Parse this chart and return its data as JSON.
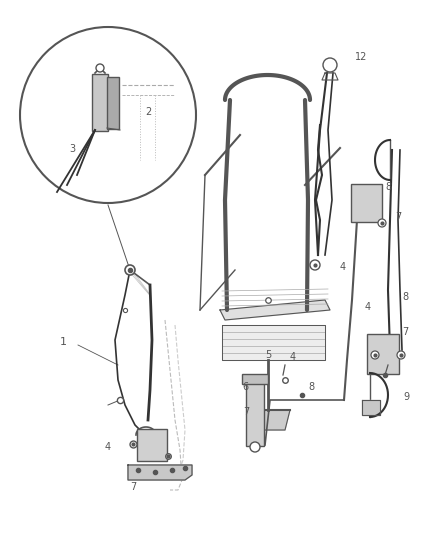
{
  "background_color": "#ffffff",
  "figure_width": 4.38,
  "figure_height": 5.33,
  "dpi": 100,
  "line_color": "#555555",
  "light_color": "#aaaaaa",
  "gray_fill": "#d8d8d8",
  "light_fill": "#eeeeee"
}
